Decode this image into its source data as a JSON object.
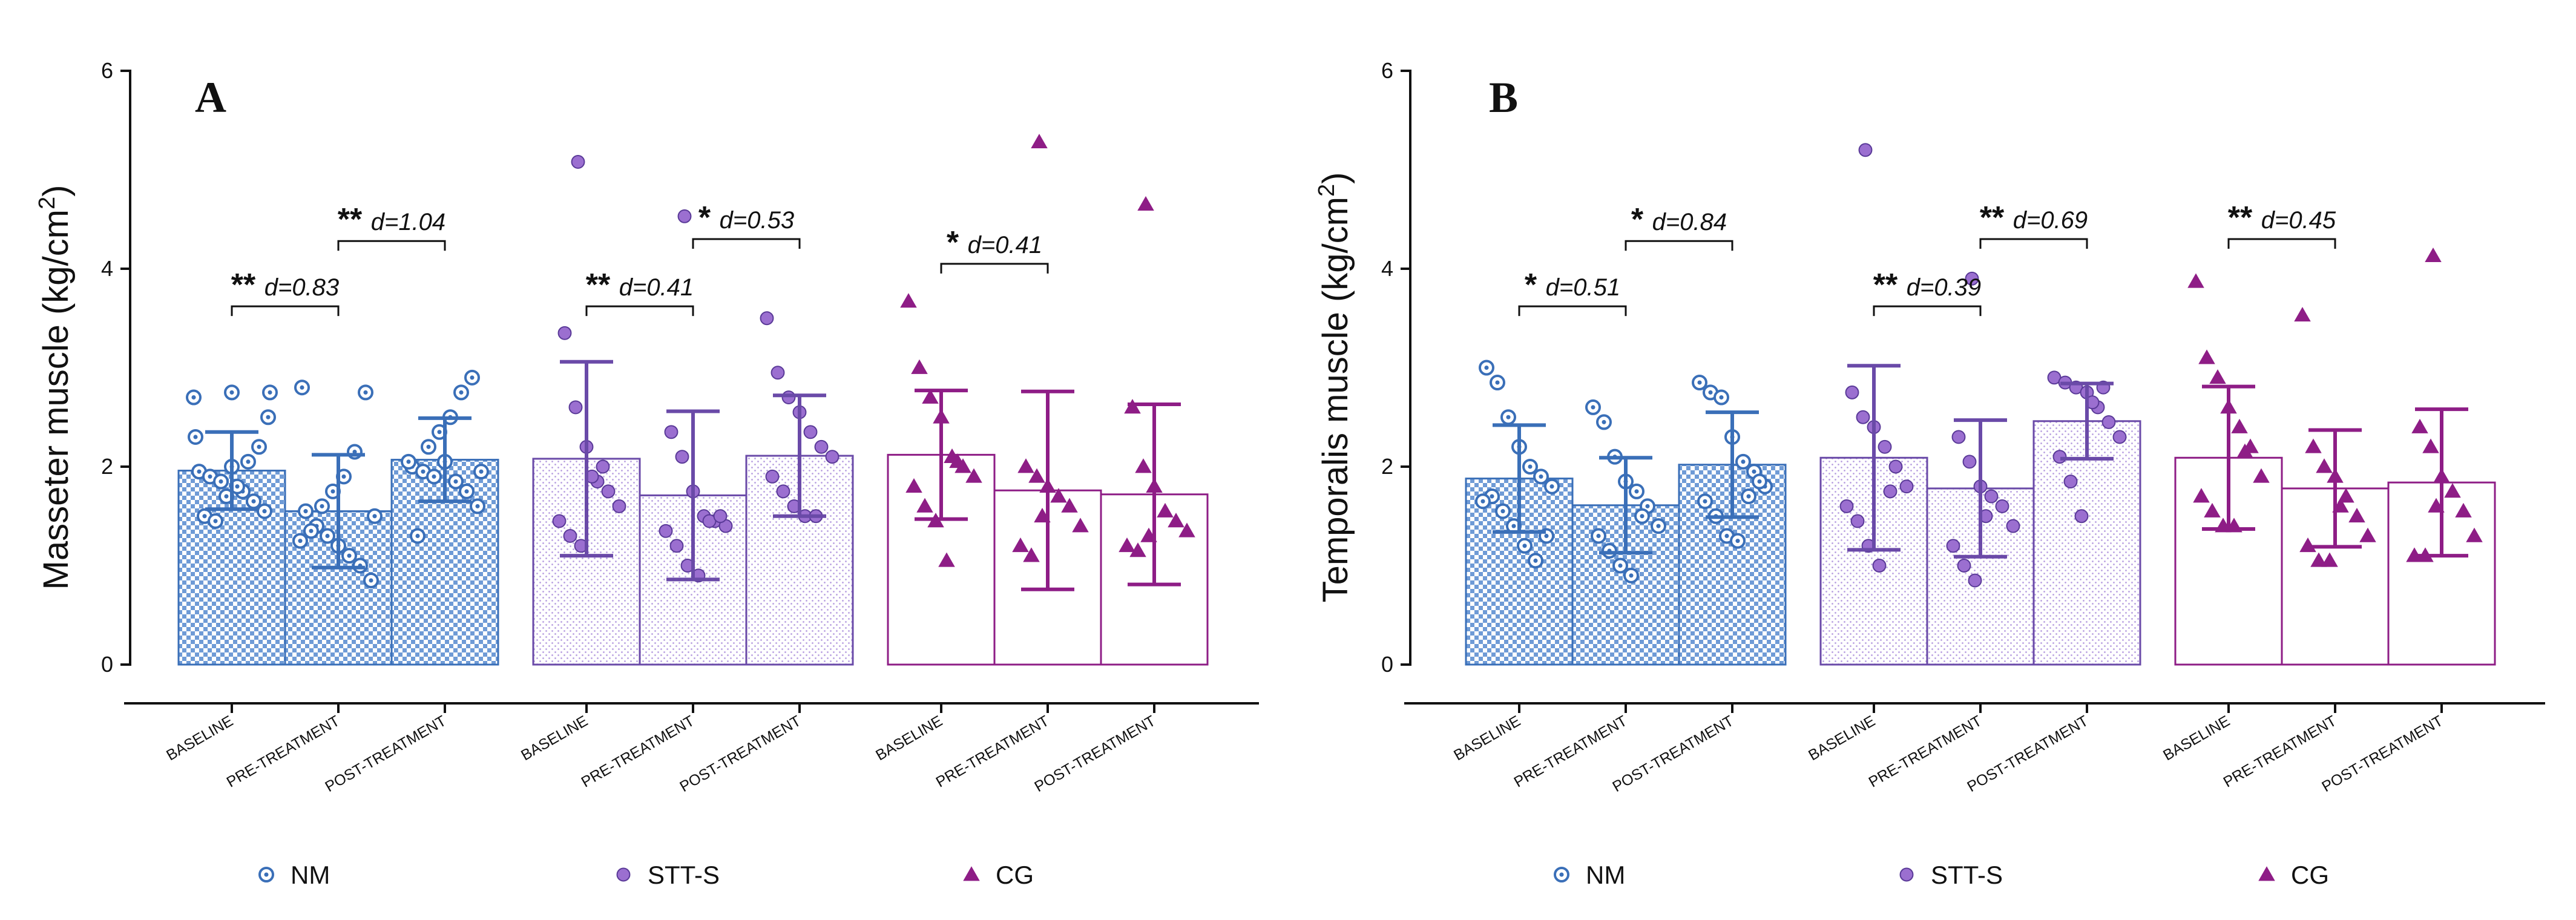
{
  "colors": {
    "NM": "#3a6fb8",
    "NM_light": "#9cc0ea",
    "STT-S": "#6a4aa8",
    "STT-S_point": "#9b6fd0",
    "STT-S_light": "#d9c9ee",
    "CG": "#8e1d86",
    "CG_light": "#d58ccf",
    "axis": "#111111"
  },
  "legend": [
    {
      "label": "NM",
      "group": "NM",
      "icon": "circle-dot-icon"
    },
    {
      "label": "STT-S",
      "group": "STT-S",
      "icon": "filled-circle-icon"
    },
    {
      "label": "CG",
      "group": "CG",
      "icon": "triangle-icon"
    }
  ],
  "chart_data": [
    {
      "type": "bar",
      "panel": "A",
      "ylabel": "Masseter muscle (kg/cm",
      "ylabel_sup": "2",
      "ylabel_end": ")",
      "ylim": [
        0,
        6
      ],
      "yticks": [
        "0",
        "2",
        "4",
        "6"
      ],
      "groups": [
        "NM",
        "STT-S",
        "CG"
      ],
      "categories": [
        "BASELINE",
        "PRE-TREATMENT",
        "POST-TREATMENT"
      ],
      "series": [
        {
          "name": "NM",
          "values": [
            1.96,
            1.55,
            2.07
          ],
          "sd": [
            0.39,
            0.57,
            0.42
          ],
          "points": [
            [
              1.95,
              1.9,
              1.85,
              2.0,
              1.75,
              1.65,
              1.55,
              1.5,
              1.45,
              1.7,
              1.8,
              2.05,
              2.2,
              2.3,
              2.5,
              2.7,
              2.75,
              2.75
            ],
            [
              1.55,
              1.4,
              1.3,
              1.2,
              1.1,
              1.0,
              0.85,
              1.35,
              1.6,
              1.75,
              1.9,
              2.15,
              2.75,
              2.8,
              1.5,
              1.25
            ],
            [
              2.0,
              1.95,
              1.9,
              2.05,
              1.85,
              1.75,
              1.6,
              1.3,
              2.2,
              2.35,
              2.5,
              2.75,
              2.9,
              2.05,
              1.95
            ]
          ]
        },
        {
          "name": "STT-S",
          "values": [
            2.08,
            1.71,
            2.11
          ],
          "sd": [
            0.98,
            0.85,
            0.61
          ],
          "points": [
            [
              5.08,
              3.35,
              2.6,
              2.2,
              1.85,
              1.75,
              1.6,
              1.45,
              1.3,
              1.2,
              1.9,
              2.0
            ],
            [
              4.53,
              2.35,
              2.1,
              1.75,
              1.5,
              1.45,
              1.4,
              1.35,
              1.2,
              1.0,
              0.9,
              1.45,
              1.5
            ],
            [
              3.5,
              2.95,
              2.7,
              2.55,
              2.35,
              2.2,
              2.1,
              1.9,
              1.75,
              1.6,
              1.5,
              1.5
            ]
          ]
        },
        {
          "name": "CG",
          "values": [
            2.12,
            1.76,
            1.72
          ],
          "sd": [
            0.65,
            1.0,
            0.91
          ],
          "points": [
            [
              3.67,
              3.0,
              2.7,
              2.5,
              2.1,
              2.0,
              1.9,
              1.8,
              1.6,
              1.45,
              1.05,
              2.05
            ],
            [
              5.28,
              2.0,
              1.9,
              1.8,
              1.7,
              1.6,
              1.4,
              1.2,
              1.1,
              1.5
            ],
            [
              4.65,
              2.6,
              2.0,
              1.8,
              1.55,
              1.45,
              1.35,
              1.2,
              1.15,
              1.3
            ]
          ]
        }
      ],
      "significance": [
        {
          "group": "NM",
          "from": 0,
          "to": 1,
          "stars": "**",
          "label": "d=0.83",
          "level": 3.62
        },
        {
          "group": "NM",
          "from": 1,
          "to": 2,
          "stars": "**",
          "label": "d=1.04",
          "level": 4.28
        },
        {
          "group": "STT-S",
          "from": 0,
          "to": 1,
          "stars": "**",
          "label": "d=0.41",
          "level": 3.62
        },
        {
          "group": "STT-S",
          "from": 1,
          "to": 2,
          "stars": "*",
          "label": "d=0.53",
          "level": 4.3
        },
        {
          "group": "CG",
          "from": 0,
          "to": 1,
          "stars": "*",
          "label": "d=0.41",
          "level": 4.05
        }
      ]
    },
    {
      "type": "bar",
      "panel": "B",
      "ylabel": "Temporalis muscle (kg/cm",
      "ylabel_sup": "2",
      "ylabel_end": ")",
      "ylim": [
        0,
        6
      ],
      "yticks": [
        "0",
        "2",
        "4",
        "6"
      ],
      "groups": [
        "NM",
        "STT-S",
        "CG"
      ],
      "categories": [
        "BASELINE",
        "PRE-TREATMENT",
        "POST-TREATMENT"
      ],
      "series": [
        {
          "name": "NM",
          "values": [
            1.88,
            1.61,
            2.02
          ],
          "sd": [
            0.54,
            0.48,
            0.53
          ],
          "points": [
            [
              3.0,
              2.85,
              2.5,
              2.2,
              2.0,
              1.9,
              1.8,
              1.7,
              1.55,
              1.4,
              1.2,
              1.05,
              1.3,
              1.65
            ],
            [
              2.6,
              2.45,
              2.1,
              1.85,
              1.75,
              1.6,
              1.4,
              1.3,
              1.15,
              1.0,
              0.9,
              1.5
            ],
            [
              2.85,
              2.75,
              2.7,
              2.3,
              2.05,
              1.95,
              1.8,
              1.65,
              1.5,
              1.3,
              1.25,
              1.7,
              1.85
            ]
          ]
        },
        {
          "name": "STT-S",
          "values": [
            2.09,
            1.78,
            2.46
          ],
          "sd": [
            0.93,
            0.69,
            0.38
          ],
          "points": [
            [
              5.2,
              2.75,
              2.5,
              2.4,
              2.2,
              2.0,
              1.8,
              1.6,
              1.45,
              1.2,
              1.0,
              1.75
            ],
            [
              3.9,
              2.3,
              2.05,
              1.8,
              1.7,
              1.6,
              1.4,
              1.2,
              1.0,
              0.85,
              1.5
            ],
            [
              2.9,
              2.85,
              2.8,
              2.75,
              2.6,
              2.45,
              2.3,
              2.1,
              1.85,
              1.5,
              2.65,
              2.8
            ]
          ]
        },
        {
          "name": "CG",
          "values": [
            2.09,
            1.78,
            1.84
          ],
          "sd": [
            0.72,
            0.59,
            0.74
          ],
          "points": [
            [
              3.87,
              3.1,
              2.9,
              2.6,
              2.4,
              2.2,
              1.9,
              1.7,
              1.55,
              1.4,
              1.4,
              2.15
            ],
            [
              3.53,
              2.2,
              2.0,
              1.9,
              1.7,
              1.5,
              1.3,
              1.2,
              1.05,
              1.05,
              1.6
            ],
            [
              4.13,
              2.4,
              2.2,
              1.9,
              1.75,
              1.55,
              1.3,
              1.1,
              1.1,
              1.6
            ]
          ]
        }
      ],
      "significance": [
        {
          "group": "NM",
          "from": 0,
          "to": 1,
          "stars": "*",
          "label": "d=0.51",
          "level": 3.62
        },
        {
          "group": "NM",
          "from": 1,
          "to": 2,
          "stars": "*",
          "label": "d=0.84",
          "level": 4.28
        },
        {
          "group": "STT-S",
          "from": 0,
          "to": 1,
          "stars": "**",
          "label": "d=0.39",
          "level": 3.62
        },
        {
          "group": "STT-S",
          "from": 1,
          "to": 2,
          "stars": "**",
          "label": "d=0.69",
          "level": 4.3
        },
        {
          "group": "CG",
          "from": 0,
          "to": 1,
          "stars": "**",
          "label": "d=0.45",
          "level": 4.3
        }
      ]
    }
  ]
}
